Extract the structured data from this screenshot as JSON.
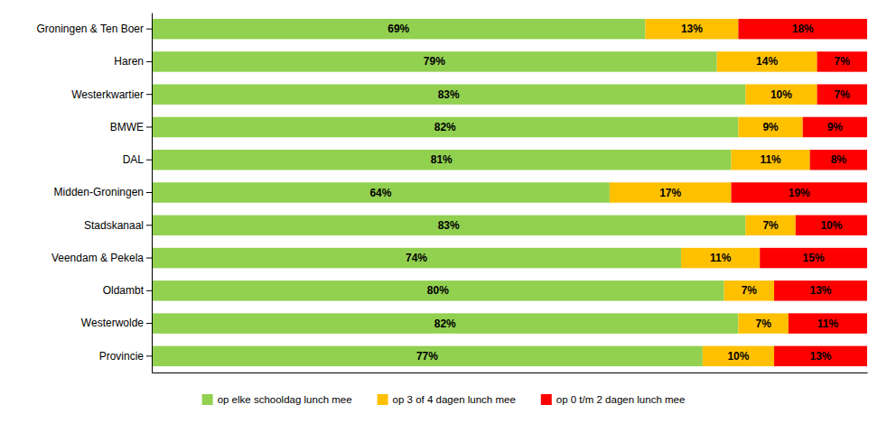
{
  "chart_data": {
    "type": "bar",
    "orientation": "horizontal",
    "stacked": true,
    "data_labels": true,
    "tick_labels": "y",
    "grid": false,
    "legend": "bottom",
    "categories": [
      "Groningen & Ten Boer",
      "Haren",
      "Westerkwartier",
      "BMWE",
      "DAL",
      "Midden-Groningen",
      "Stadskanaal",
      "Veendam & Pekela",
      "Oldambt",
      "Westerwolde",
      "Provincie"
    ],
    "xlim": [
      0,
      100
    ],
    "series": [
      {
        "name": "op elke schooldag lunch mee",
        "color": "#92D050",
        "values": [
          69,
          79,
          83,
          82,
          81,
          64,
          83,
          74,
          80,
          82,
          77
        ],
        "value_labels": [
          "69%",
          "79%",
          "83%",
          "82%",
          "81%",
          "64%",
          "83%",
          "74%",
          "80%",
          "82%",
          "77%"
        ]
      },
      {
        "name": "op 3 of 4 dagen lunch mee",
        "color": "#FFC000",
        "values": [
          13,
          14,
          10,
          9,
          11,
          17,
          7,
          11,
          7,
          7,
          10
        ],
        "value_labels": [
          "13%",
          "14%",
          "10%",
          "9%",
          "11%",
          "17%",
          "7%",
          "11%",
          "7%",
          "7%",
          "10%"
        ]
      },
      {
        "name": "op 0 t/m 2 dagen lunch mee",
        "color": "#FF0000",
        "values": [
          18,
          7,
          7,
          9,
          8,
          19,
          10,
          15,
          13,
          11,
          13
        ],
        "value_labels": [
          "18%",
          "7%",
          "7%",
          "9%",
          "8%",
          "19%",
          "10%",
          "15%",
          "13%",
          "11%",
          "13%"
        ]
      }
    ]
  }
}
